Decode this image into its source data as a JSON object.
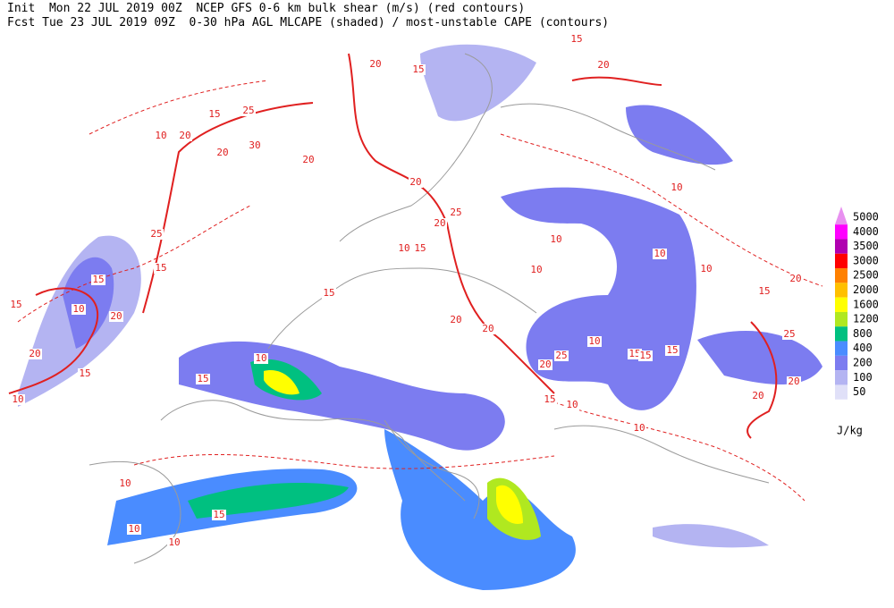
{
  "header": {
    "init_line": "Init  Mon 22 JUL 2019 00Z  NCEP GFS 0-6 km bulk shear (m/s) (red contours)",
    "fcst_line": "Fcst Tue 23 JUL 2019 09Z  0-30 hPa AGL MLCAPE (shaded) / most-unstable CAPE (contours)"
  },
  "legend": {
    "unit": "J/kg",
    "levels": [
      {
        "value": 5000,
        "color": "#e890f0"
      },
      {
        "value": 4000,
        "color": "#ff00ff"
      },
      {
        "value": 3500,
        "color": "#b000b0"
      },
      {
        "value": 3000,
        "color": "#ff0000"
      },
      {
        "value": 2500,
        "color": "#ff8000"
      },
      {
        "value": 2000,
        "color": "#ffc000"
      },
      {
        "value": 1600,
        "color": "#ffff00"
      },
      {
        "value": 1200,
        "color": "#b0e820"
      },
      {
        "value": 800,
        "color": "#00c080"
      },
      {
        "value": 400,
        "color": "#4a8cff"
      },
      {
        "value": 200,
        "color": "#7c7cf0"
      },
      {
        "value": 100,
        "color": "#b4b4f2"
      },
      {
        "value": 50,
        "color": "#e0e0f8"
      }
    ]
  },
  "contour_labels": [
    "15",
    "20",
    "10",
    "25",
    "30",
    "20",
    "20",
    "20",
    "15",
    "20",
    "25",
    "20",
    "10",
    "15",
    "25",
    "15",
    "15",
    "10",
    "20",
    "20",
    "15",
    "10",
    "15",
    "10",
    "15",
    "15",
    "10",
    "10",
    "10",
    "10",
    "10",
    "10",
    "15",
    "15",
    "20",
    "25",
    "25",
    "20",
    "20",
    "10",
    "10",
    "20",
    "15",
    "10",
    "10",
    "10",
    "15",
    "20",
    "20",
    "20",
    "15",
    "15",
    "15"
  ]
}
